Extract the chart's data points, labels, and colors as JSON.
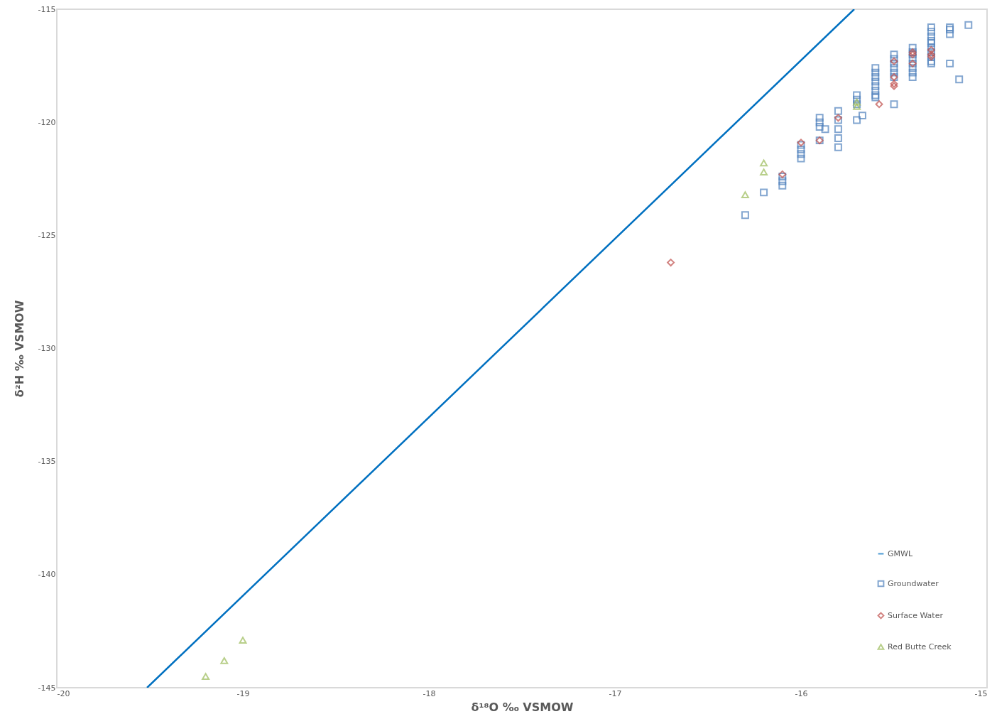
{
  "chart_data": {
    "type": "scatter",
    "xlabel": "δ¹⁸O ‰ VSMOW",
    "ylabel": "δ²H ‰ VSMOW",
    "xlim": [
      -20,
      -15
    ],
    "xticks": [
      -20,
      -19,
      -18,
      -17,
      -16,
      -15
    ],
    "ylim": [
      -145,
      -115
    ],
    "yticks": [
      -145,
      -140,
      -135,
      -130,
      -125,
      -120,
      -115
    ],
    "grid": false,
    "legend": "bottom right",
    "series": [
      {
        "name": "GMWL",
        "type": "line",
        "color": "#0070c0",
        "x": [
          -19.515,
          -15.714
        ],
        "values": [
          -145,
          -115
        ]
      },
      {
        "name": "Groundwater",
        "marker": "square",
        "color": "#4f81bd",
        "x": [
          -16.3,
          -16.2,
          -16.1,
          -16.1,
          -16.1,
          -16.0,
          -16.0,
          -16.0,
          -16.0,
          -15.9,
          -15.9,
          -15.9,
          -15.9,
          -15.87,
          -15.8,
          -15.8,
          -15.8,
          -15.8,
          -15.8,
          -15.7,
          -15.7,
          -15.7,
          -15.7,
          -15.67,
          -15.6,
          -15.6,
          -15.6,
          -15.6,
          -15.6,
          -15.6,
          -15.6,
          -15.6,
          -15.5,
          -15.5,
          -15.5,
          -15.5,
          -15.5,
          -15.5,
          -15.5,
          -15.4,
          -15.4,
          -15.4,
          -15.4,
          -15.4,
          -15.4,
          -15.4,
          -15.4,
          -15.3,
          -15.3,
          -15.3,
          -15.3,
          -15.3,
          -15.3,
          -15.3,
          -15.3,
          -15.3,
          -15.3,
          -15.2,
          -15.2,
          -15.2,
          -15.2,
          -15.15,
          -15.1
        ],
        "values": [
          -124.1,
          -123.1,
          -122.4,
          -122.6,
          -122.8,
          -121.0,
          -121.2,
          -121.4,
          -121.6,
          -119.8,
          -120.0,
          -120.2,
          -120.8,
          -120.3,
          -119.5,
          -119.9,
          -120.3,
          -120.7,
          -121.1,
          -118.8,
          -119.0,
          -119.2,
          -119.9,
          -119.7,
          -117.6,
          -117.8,
          -118.0,
          -118.2,
          -118.4,
          -118.6,
          -118.8,
          -118.9,
          -117.0,
          -117.2,
          -117.4,
          -117.6,
          -117.8,
          -118.0,
          -119.2,
          -116.7,
          -116.9,
          -117.0,
          -117.2,
          -117.4,
          -117.6,
          -117.8,
          -118.0,
          -115.8,
          -116.0,
          -116.2,
          -116.4,
          -116.5,
          -116.7,
          -116.9,
          -117.1,
          -117.3,
          -117.4,
          -115.8,
          -115.9,
          -116.1,
          -117.4,
          -118.1,
          -115.7
        ]
      },
      {
        "name": "Surface Water",
        "marker": "diamond",
        "color": "#c0504d",
        "x": [
          -16.7,
          -16.1,
          -16.0,
          -15.9,
          -15.8,
          -15.58,
          -15.5,
          -15.5,
          -15.5,
          -15.5,
          -15.4,
          -15.4,
          -15.4,
          -15.3,
          -15.3,
          -15.3
        ],
        "values": [
          -126.2,
          -122.3,
          -120.9,
          -120.8,
          -119.8,
          -119.2,
          -117.3,
          -118.0,
          -118.3,
          -118.4,
          -116.9,
          -117.0,
          -117.4,
          -116.8,
          -117.0,
          -117.1
        ]
      },
      {
        "name": "Red Butte Creek",
        "marker": "triangle",
        "color": "#9bbb59",
        "x": [
          -19.2,
          -19.1,
          -19.0,
          -16.3,
          -16.2,
          -16.2,
          -15.7,
          -15.7
        ],
        "values": [
          -144.5,
          -143.8,
          -142.9,
          -123.2,
          -121.8,
          -122.2,
          -119.1,
          -119.3
        ]
      }
    ]
  }
}
